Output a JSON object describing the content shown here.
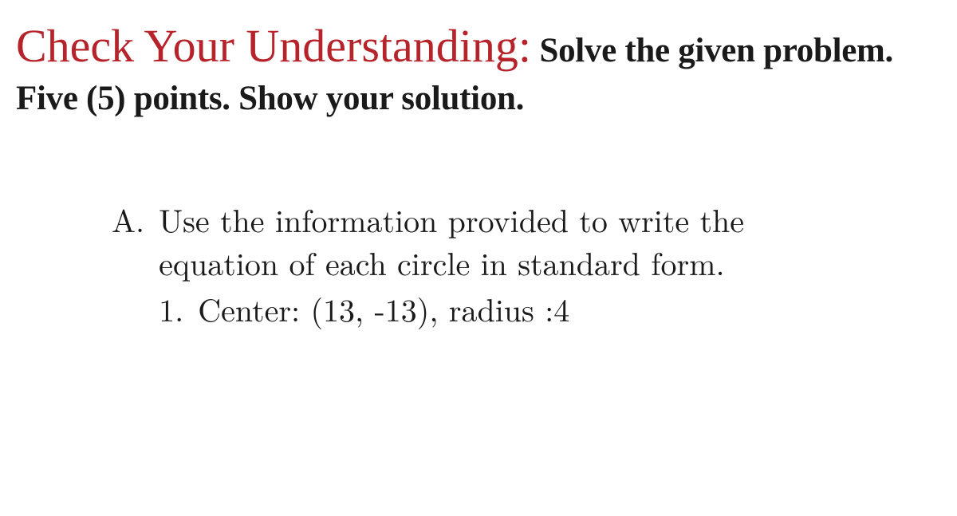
{
  "header": {
    "cursive": "Check Your Understanding:",
    "bold1": "Solve the given problem.",
    "bold2": "Five (5) points. Show your solution."
  },
  "section": {
    "letter": "A.",
    "text_line1": "Use the information provided to write the",
    "text_line2": "equation of each circle in standard form.",
    "item_num": "1.",
    "item_text": "Center: (13, -13), radius :4"
  },
  "colors": {
    "cursive": "#b6232a",
    "body_text": "#1a1a1a",
    "background": "#ffffff"
  },
  "fonts": {
    "cursive_family": "Brush Script MT",
    "cursive_size_pt": 44,
    "bold_size_pt": 32,
    "body_size_pt": 30
  }
}
